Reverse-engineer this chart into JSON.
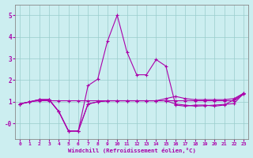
{
  "xlabel": "Windchill (Refroidissement éolien,°C)",
  "background_color": "#cceef0",
  "line_color": "#aa00aa",
  "grid_color": "#99cccc",
  "xlim": [
    -0.5,
    23.5
  ],
  "ylim": [
    -0.7,
    5.5
  ],
  "yticks": [
    0,
    1,
    2,
    3,
    4,
    5
  ],
  "ytick_labels": [
    "-0",
    "1",
    "2",
    "3",
    "4",
    "5"
  ],
  "xticks": [
    0,
    1,
    2,
    3,
    4,
    5,
    6,
    7,
    8,
    9,
    10,
    11,
    12,
    13,
    14,
    15,
    16,
    17,
    18,
    19,
    20,
    21,
    22,
    23
  ],
  "line1_x": [
    0,
    1,
    2,
    3,
    4,
    5,
    6,
    7,
    8,
    9,
    10,
    11,
    12,
    13,
    14,
    15,
    16,
    17,
    18,
    19,
    20,
    21,
    22,
    23
  ],
  "line1_y": [
    0.9,
    1.0,
    1.1,
    1.1,
    0.55,
    -0.35,
    -0.35,
    1.75,
    2.05,
    3.8,
    5.0,
    3.3,
    2.25,
    2.25,
    2.95,
    2.65,
    0.85,
    0.8,
    0.85,
    0.85,
    0.8,
    0.85,
    1.1,
    1.4
  ],
  "line2_x": [
    0,
    1,
    2,
    3,
    4,
    5,
    6,
    7,
    8,
    9,
    10,
    11,
    12,
    13,
    14,
    15,
    16,
    17,
    18,
    19,
    20,
    21,
    22,
    23
  ],
  "line2_y": [
    0.9,
    1.0,
    1.05,
    1.05,
    1.05,
    1.05,
    1.05,
    1.05,
    1.05,
    1.05,
    1.05,
    1.05,
    1.05,
    1.05,
    1.05,
    1.05,
    1.05,
    1.05,
    1.05,
    1.05,
    1.05,
    1.05,
    1.05,
    1.35
  ],
  "line3_x": [
    0,
    1,
    2,
    3,
    4,
    5,
    6,
    7,
    8,
    9,
    10,
    11,
    12,
    13,
    14,
    15,
    16,
    17,
    18,
    19,
    20,
    21,
    22,
    23
  ],
  "line3_y": [
    0.9,
    1.0,
    1.1,
    1.1,
    0.55,
    -0.35,
    -0.35,
    0.9,
    1.0,
    1.05,
    1.05,
    1.05,
    1.05,
    1.05,
    1.05,
    1.15,
    1.25,
    1.15,
    1.1,
    1.1,
    1.1,
    1.1,
    1.15,
    1.4
  ],
  "line4_x": [
    0,
    1,
    2,
    3,
    4,
    5,
    6,
    7,
    8,
    9,
    10,
    11,
    12,
    13,
    14,
    15,
    16,
    17,
    18,
    19,
    20,
    21,
    22,
    23
  ],
  "line4_y": [
    0.9,
    1.0,
    1.1,
    1.1,
    0.55,
    -0.35,
    -0.35,
    0.9,
    1.0,
    1.05,
    1.05,
    1.05,
    1.05,
    1.05,
    1.05,
    1.05,
    0.9,
    0.85,
    0.8,
    0.82,
    0.85,
    0.88,
    0.92,
    1.4
  ]
}
